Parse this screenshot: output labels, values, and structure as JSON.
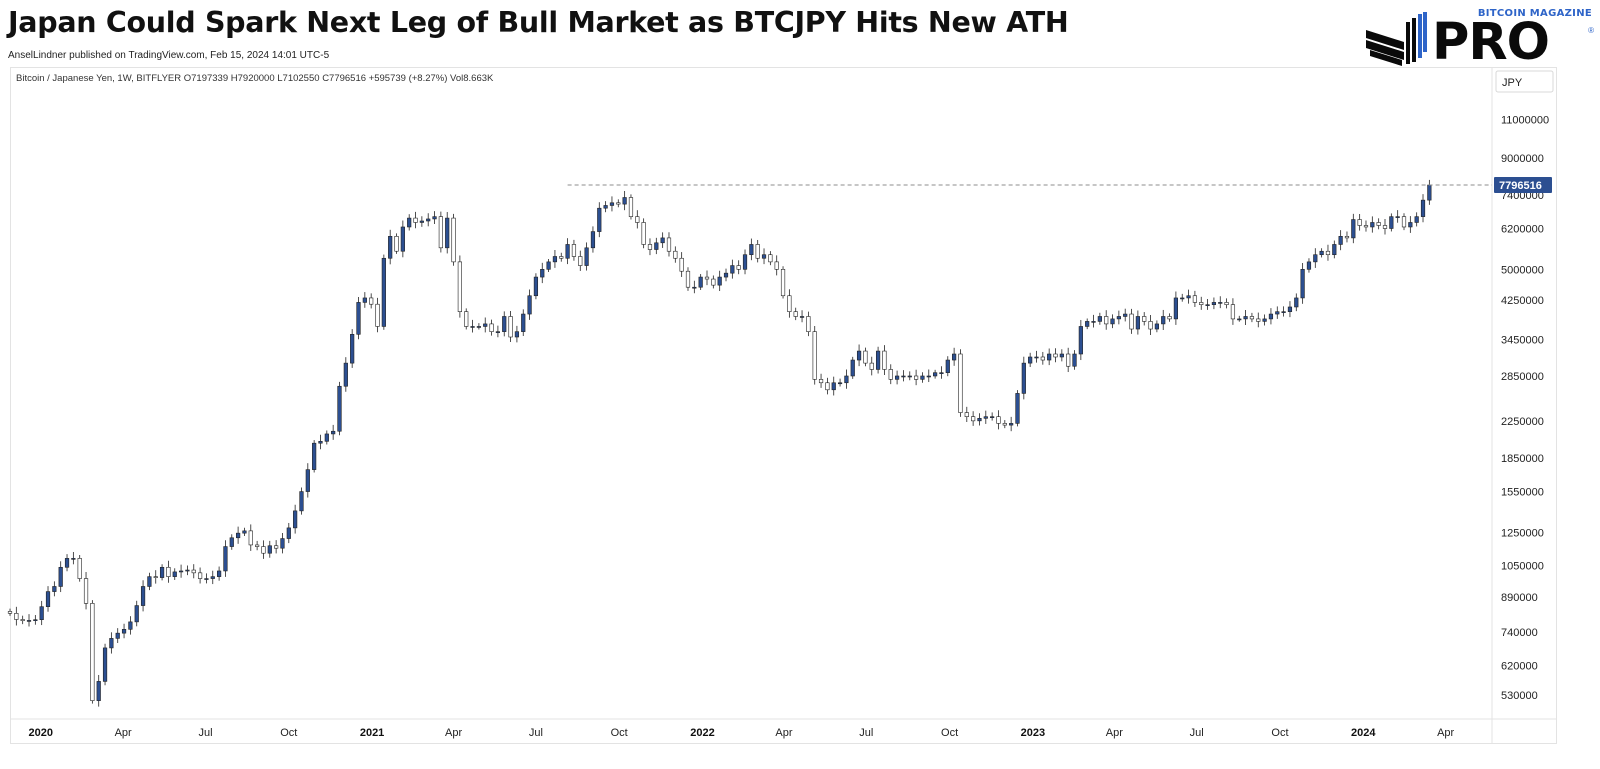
{
  "header": {
    "title": "Japan Could Spark Next Leg of Bull Market as BTCJPY Hits New ATH",
    "byline": "AnselLindner published on TradingView.com, Feb 15, 2024 14:01 UTC-5"
  },
  "logo": {
    "top_text": "BITCOIN MAGAZINE",
    "main_text": "PRO",
    "reg": "®"
  },
  "legend": {
    "symbol": "Bitcoin / Japanese Yen, 1W, BITFLYER",
    "open": "O7197339",
    "high": "H7920000",
    "low": "L7102550",
    "close": "C7796516",
    "change": "+595739 (+8.27%)",
    "volume": "Vol8.663K"
  },
  "chart_data": {
    "type": "candlestick",
    "title": "Japan Could Spark Next Leg of Bull Market as BTCJPY Hits New ATH",
    "currency_label": "JPY",
    "scale": "log",
    "ylim": [
      470000,
      13000000
    ],
    "y_ticks": [
      11000000,
      9000000,
      7400000,
      6200000,
      5000000,
      4250000,
      3450000,
      2850000,
      2250000,
      1850000,
      1550000,
      1250000,
      1050000,
      890000,
      740000,
      620000,
      530000
    ],
    "x_ticks": [
      {
        "label": "2020",
        "date": "2020-01-01",
        "bold": true
      },
      {
        "label": "Apr",
        "date": "2020-04-01"
      },
      {
        "label": "Jul",
        "date": "2020-07-01"
      },
      {
        "label": "Oct",
        "date": "2020-10-01"
      },
      {
        "label": "2021",
        "date": "2021-01-01",
        "bold": true
      },
      {
        "label": "Apr",
        "date": "2021-04-01"
      },
      {
        "label": "Jul",
        "date": "2021-07-01"
      },
      {
        "label": "Oct",
        "date": "2021-10-01"
      },
      {
        "label": "2022",
        "date": "2022-01-01",
        "bold": true
      },
      {
        "label": "Apr",
        "date": "2022-04-01"
      },
      {
        "label": "Jul",
        "date": "2022-07-01"
      },
      {
        "label": "Oct",
        "date": "2022-10-01"
      },
      {
        "label": "2023",
        "date": "2023-01-01",
        "bold": true
      },
      {
        "label": "Apr",
        "date": "2023-04-01"
      },
      {
        "label": "Jul",
        "date": "2023-07-01"
      },
      {
        "label": "Oct",
        "date": "2023-10-01"
      },
      {
        "label": "2024",
        "date": "2024-01-01",
        "bold": true
      },
      {
        "label": "Apr",
        "date": "2024-04-01"
      }
    ],
    "last_price": 7796516,
    "ath_line": {
      "value": 7796516,
      "from_date": "2021-08-05",
      "style": "dashed"
    },
    "x_range": [
      "2019-11-28",
      "2024-05-20"
    ],
    "first_week": "2019-11-28",
    "colors": {
      "up": "#2c4f91",
      "down": "#ffffff",
      "outline": "#222222",
      "price_label_bg": "#2c4f91",
      "ath_line": "#8c8c8c"
    },
    "close_series_1w": [
      816000,
      790000,
      785000,
      786000,
      789000,
      845000,
      915000,
      940000,
      1040000,
      1090000,
      1090000,
      980000,
      860000,
      515000,
      570000,
      680000,
      715000,
      735000,
      750000,
      780000,
      850000,
      940000,
      990000,
      985000,
      1040000,
      990000,
      1015000,
      1020000,
      1025000,
      1010000,
      980000,
      980000,
      990000,
      1020000,
      1160000,
      1215000,
      1245000,
      1260000,
      1170000,
      1160000,
      1120000,
      1165000,
      1150000,
      1210000,
      1280000,
      1400000,
      1550000,
      1740000,
      2000000,
      2020000,
      2100000,
      2130000,
      2700000,
      3050000,
      3550000,
      4200000,
      4300000,
      4160000,
      3700000,
      5300000,
      5950000,
      5500000,
      6250000,
      6550000,
      6400000,
      6450000,
      6520000,
      6600000,
      5600000,
      6550000,
      5200000,
      4000000,
      3700000,
      3700000,
      3700000,
      3750000,
      3600000,
      3600000,
      3900000,
      3500000,
      3600000,
      3950000,
      4350000,
      4800000,
      5000000,
      5200000,
      5350000,
      5300000,
      5700000,
      5350000,
      5100000,
      5600000,
      6100000,
      6900000,
      7000000,
      7100000,
      7050000,
      7300000,
      6600000,
      6400000,
      5700000,
      5550000,
      5750000,
      5900000,
      5500000,
      5300000,
      4950000,
      4550000,
      4550000,
      4800000,
      4750000,
      4600000,
      4800000,
      4900000,
      5100000,
      5000000,
      5400000,
      5700000,
      5300000,
      5400000,
      5200000,
      5000000,
      4350000,
      4000000,
      3900000,
      3900000,
      3600000,
      2800000,
      2750000,
      2650000,
      2750000,
      2750000,
      2850000,
      3100000,
      3250000,
      3050000,
      2950000,
      3250000,
      2950000,
      2800000,
      2850000,
      2850000,
      2850000,
      2800000,
      2850000,
      2850000,
      2900000,
      2900000,
      3100000,
      3200000,
      2350000,
      2300000,
      2250000,
      2280000,
      2300000,
      2300000,
      2220000,
      2200000,
      2220000,
      2600000,
      3050000,
      3150000,
      3150000,
      3100000,
      3200000,
      3150000,
      3200000,
      3000000,
      3200000,
      3700000,
      3800000,
      3800000,
      3900000,
      3750000,
      3850000,
      3900000,
      3950000,
      3650000,
      3900000,
      3800000,
      3650000,
      3750000,
      3900000,
      3850000,
      4300000,
      4300000,
      4350000,
      4200000,
      4150000,
      4150000,
      4200000,
      4200000,
      4150000,
      3850000,
      3850000,
      3900000,
      3850000,
      3800000,
      3850000,
      3950000,
      4000000,
      4000000,
      4100000,
      4300000,
      5000000,
      5200000,
      5400000,
      5500000,
      5400000,
      5700000,
      5950000,
      5900000,
      6500000,
      6300000,
      6250000,
      6400000,
      6300000,
      6200000,
      6600000,
      6600000,
      6250000,
      6400000,
      6600000,
      7200000,
      7796516
    ]
  }
}
